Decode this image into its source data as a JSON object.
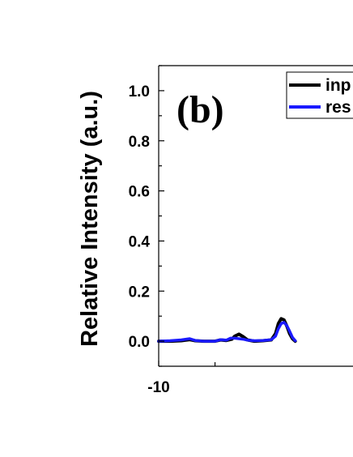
{
  "chart_data": {
    "type": "line",
    "title": "",
    "panel_label": "(b)",
    "xlabel": "",
    "ylabel": "Relative Intensity (a.u.)",
    "xlim": [
      -10,
      -3.1
    ],
    "ylim": [
      -0.1,
      1.1
    ],
    "x_ticks": [
      -10
    ],
    "x_tick_labels": [
      "-10"
    ],
    "x_minor_ticks": [
      -8
    ],
    "y_ticks": [
      0.0,
      0.2,
      0.4,
      0.6,
      0.8,
      1.0
    ],
    "y_tick_labels": [
      "0.0",
      "0.2",
      "0.4",
      "0.6",
      "0.8",
      "1.0"
    ],
    "grid": false,
    "legend_position": "top-right",
    "series": [
      {
        "name": "inp",
        "color": "#000000",
        "points": [
          [
            -10.0,
            0.0
          ],
          [
            -9.6,
            0.0
          ],
          [
            -9.2,
            0.002
          ],
          [
            -8.9,
            0.006
          ],
          [
            -8.7,
            0.002
          ],
          [
            -8.4,
            0.0
          ],
          [
            -8.0,
            0.0
          ],
          [
            -7.8,
            0.005
          ],
          [
            -7.6,
            0.003
          ],
          [
            -7.4,
            0.008
          ],
          [
            -7.3,
            0.02
          ],
          [
            -7.15,
            0.028
          ],
          [
            -7.0,
            0.018
          ],
          [
            -6.85,
            0.005
          ],
          [
            -6.6,
            0.0
          ],
          [
            -6.3,
            0.002
          ],
          [
            -6.0,
            0.005
          ],
          [
            -5.85,
            0.03
          ],
          [
            -5.75,
            0.07
          ],
          [
            -5.65,
            0.09
          ],
          [
            -5.55,
            0.085
          ],
          [
            -5.45,
            0.06
          ],
          [
            -5.35,
            0.03
          ],
          [
            -5.25,
            0.01
          ],
          [
            -5.15,
            0.0
          ]
        ]
      },
      {
        "name": "res",
        "color": "#1a1aff",
        "points": [
          [
            -10.0,
            0.0
          ],
          [
            -9.6,
            0.002
          ],
          [
            -9.2,
            0.005
          ],
          [
            -8.9,
            0.01
          ],
          [
            -8.7,
            0.003
          ],
          [
            -8.4,
            0.0
          ],
          [
            -8.0,
            0.0
          ],
          [
            -7.8,
            0.006
          ],
          [
            -7.6,
            0.004
          ],
          [
            -7.45,
            0.012
          ],
          [
            -7.3,
            0.012
          ],
          [
            -7.15,
            0.01
          ],
          [
            -7.0,
            0.008
          ],
          [
            -6.85,
            0.004
          ],
          [
            -6.6,
            0.002
          ],
          [
            -6.3,
            0.003
          ],
          [
            -6.0,
            0.006
          ],
          [
            -5.85,
            0.02
          ],
          [
            -5.75,
            0.05
          ],
          [
            -5.65,
            0.07
          ],
          [
            -5.55,
            0.075
          ],
          [
            -5.45,
            0.062
          ],
          [
            -5.35,
            0.04
          ],
          [
            -5.25,
            0.015
          ],
          [
            -5.15,
            0.002
          ]
        ]
      }
    ]
  }
}
